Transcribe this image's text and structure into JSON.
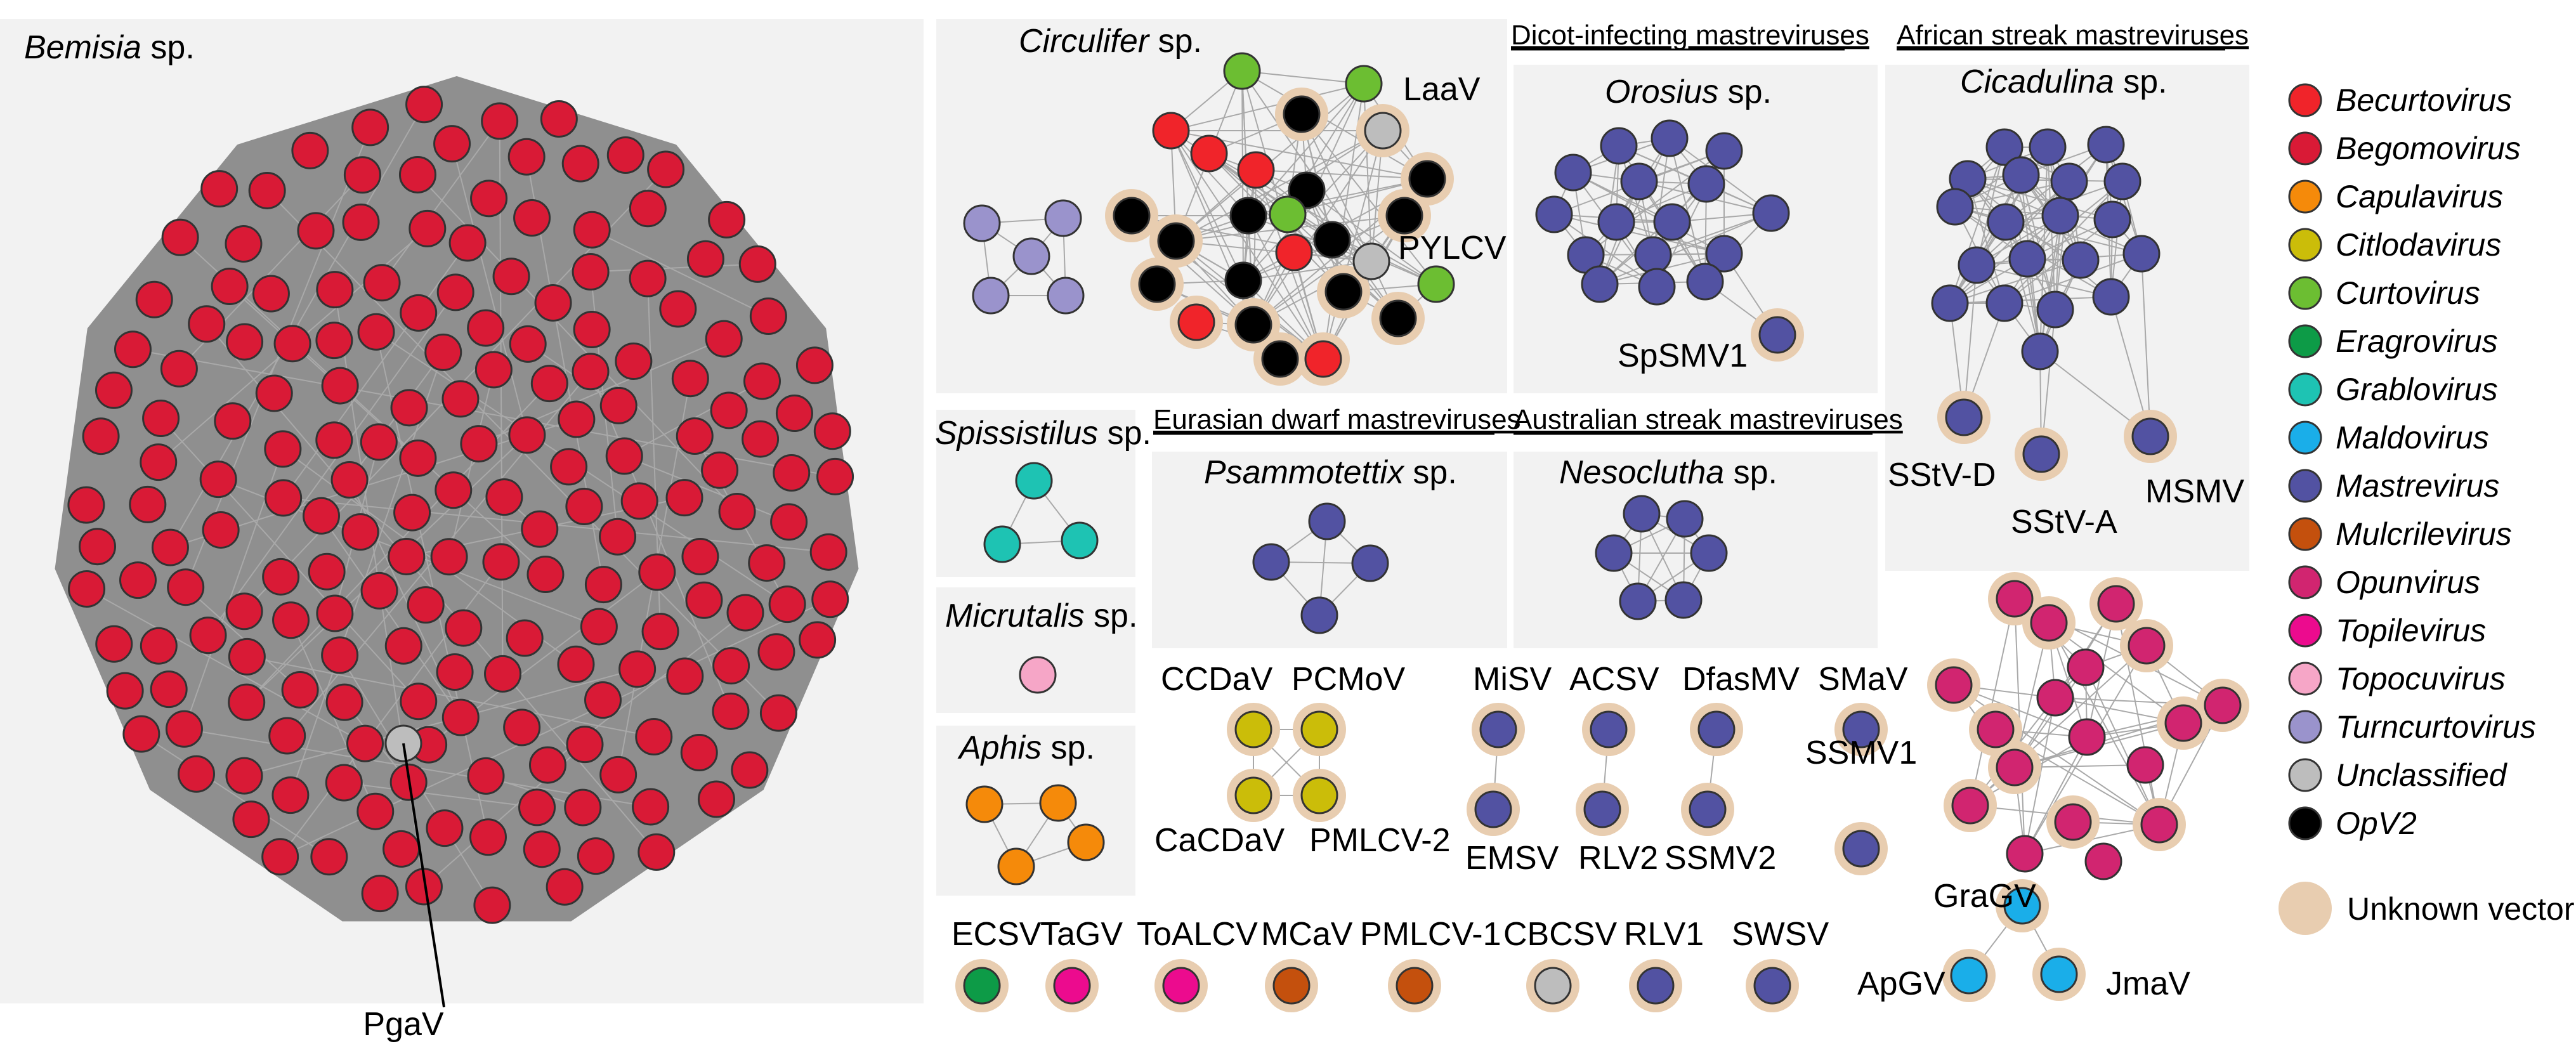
{
  "colors": {
    "Becurtovirus": "#f0242a",
    "Begomovirus": "#d91a36",
    "Capulavirus": "#f58a0a",
    "Citlodavirus": "#cbbd09",
    "Curtovirus": "#6cbe32",
    "Eragrovirus": "#0d9b47",
    "Grablovirus": "#1ec3b3",
    "Maldovirus": "#1aaee9",
    "Mastrevirus": "#5252a2",
    "Mulcrilevirus": "#c4500d",
    "Opunvirus": "#d12570",
    "Topilevirus": "#ec0b8e",
    "Topocuvirus": "#f6a6c7",
    "Turncurtovirus": "#9a93cc",
    "Unclassified": "#bdbdbd",
    "OpV2": "#000000",
    "unknown_halo": "#e8cdb0"
  },
  "legend": {
    "items": [
      {
        "label": "Becurtovirus",
        "color": "#f0242a",
        "text_color": "#f0242a"
      },
      {
        "label": "Begomovirus",
        "color": "#d91a36",
        "text_color": "#d91a36"
      },
      {
        "label": "Capulavirus",
        "color": "#f58a0a",
        "text_color": "#f58a0a"
      },
      {
        "label": "Citlodavirus",
        "color": "#cbbd09",
        "text_color": "#cbbd09"
      },
      {
        "label": "Curtovirus",
        "color": "#6cbe32",
        "text_color": "#6cbe32"
      },
      {
        "label": "Eragrovirus",
        "color": "#0d9b47",
        "text_color": "#0d9b47"
      },
      {
        "label": "Grablovirus",
        "color": "#1ec3b3",
        "text_color": "#1ec3b3"
      },
      {
        "label": "Maldovirus",
        "color": "#1aaee9",
        "text_color": "#1aaee9"
      },
      {
        "label": "Mastrevirus",
        "color": "#5252a2",
        "text_color": "#5252a2"
      },
      {
        "label": "Mulcrilevirus",
        "color": "#c4500d",
        "text_color": "#c4500d"
      },
      {
        "label": "Opunvirus",
        "color": "#d12570",
        "text_color": "#d12570"
      },
      {
        "label": "Topilevirus",
        "color": "#ec0b8e",
        "text_color": "#ec0b8e"
      },
      {
        "label": "Topocuvirus",
        "color": "#f6a6c7",
        "text_color": "#f6a6c7"
      },
      {
        "label": "Turncurtovirus",
        "color": "#9a93cc",
        "text_color": "#9a93cc"
      },
      {
        "label": "Unclassified",
        "color": "#bdbdbd",
        "text_color": "#bdbdbd"
      },
      {
        "label": "OpV2",
        "color": "#000000",
        "text_color": "#000000"
      }
    ],
    "unknown_vector": "Unknown vector"
  },
  "sections": {
    "dicot": "Dicot-infecting mastreviruses",
    "african": "African streak mastreviruses",
    "eurasian": "Eurasian dwarf mastreviruses",
    "australian": "Australian streak mastreviruses"
  },
  "vectors": {
    "bemisia": {
      "genus": "Bemisia",
      "suffix": " sp."
    },
    "circulifer": {
      "genus": "Circulifer",
      "suffix": " sp."
    },
    "orosius": {
      "genus": "Orosius",
      "suffix": " sp."
    },
    "cicadulina": {
      "genus": "Cicadulina",
      "suffix": " sp."
    },
    "spissistilus": {
      "genus": "Spissistilus",
      "suffix": " sp."
    },
    "micrutalis": {
      "genus": "Micrutalis",
      "suffix": " sp."
    },
    "aphis": {
      "genus": "Aphis",
      "suffix": " sp."
    },
    "psammotettix": {
      "genus": "Psammotettix",
      "suffix": " sp."
    },
    "nesoclutha": {
      "genus": "Nesoclutha",
      "suffix": " sp."
    }
  },
  "viruses": {
    "pgav": "PgaV",
    "laav": "LaaV",
    "pylcv": "PYLCV",
    "spsmv1": "SpSMV1",
    "sstv_d": "SStV-D",
    "sstv_a": "SStV-A",
    "msmv": "MSMV",
    "ccdav": "CCDaV",
    "pcmov": "PCMoV",
    "cacdav": "CaCDaV",
    "pmlcv2": "PMLCV-2",
    "misv": "MiSV",
    "acsv": "ACSV",
    "dfasmv": "DfasMV",
    "smav": "SMaV",
    "emsv": "EMSV",
    "rlv2": "RLV2",
    "ssmv2": "SSMV2",
    "ssmv1": "SSMV1",
    "gragv": "GraGV",
    "apgv": "ApGV",
    "jmav": "JmaV",
    "ecsv": "ECSV",
    "tagv": "TaGV",
    "toalcv": "ToALCV",
    "mcav": "MCaV",
    "pmlcv1": "PMLCV-1",
    "cbcsv": "CBCSV",
    "rlv1": "RLV1",
    "swsv": "SWSV"
  }
}
